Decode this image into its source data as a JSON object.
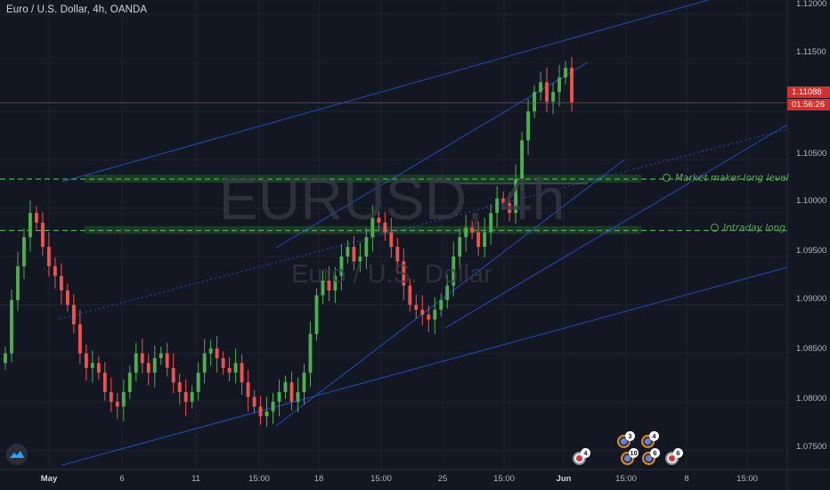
{
  "header": {
    "symbol_title": "Euro / U.S. Dollar, 4h, OANDA"
  },
  "watermark": {
    "symbol": "EURUSD, 4h",
    "description": "Euro / U.S. Dollar"
  },
  "levels": [
    {
      "label": "Market maker long level",
      "price": 1.103
    },
    {
      "label": "Intraday long",
      "price": 1.0977
    }
  ],
  "price_axis": {
    "ticks": [
      "1.12000",
      "1.11500",
      "1.11000",
      "1.10500",
      "1.10000",
      "1.09500",
      "1.09000",
      "1.08500",
      "1.08000",
      "1.07500"
    ],
    "current_price": "1.11088",
    "countdown": "01:56:26"
  },
  "time_axis": {
    "ticks": [
      {
        "label": "May",
        "bold": true
      },
      {
        "label": "6",
        "bold": false
      },
      {
        "label": "11",
        "bold": false
      },
      {
        "label": "15:00",
        "bold": false
      },
      {
        "label": "18",
        "bold": false
      },
      {
        "label": "15:00",
        "bold": false
      },
      {
        "label": "25",
        "bold": false
      },
      {
        "label": "15:00",
        "bold": false
      },
      {
        "label": "Jun",
        "bold": true
      },
      {
        "label": "15:00",
        "bold": false
      },
      {
        "label": "8",
        "bold": false
      },
      {
        "label": "15:00",
        "bold": false
      }
    ]
  },
  "events": [
    {
      "count": "4",
      "kind": "plain"
    },
    {
      "count": "3",
      "kind": "ring"
    },
    {
      "count": "4",
      "kind": "ring"
    },
    {
      "count": "10",
      "kind": "ring"
    },
    {
      "count": "6",
      "kind": "ring"
    },
    {
      "count": "6",
      "kind": "plain"
    }
  ],
  "colors": {
    "background": "#131722",
    "bull": "#26a69a",
    "bull_candle": "#4caf50",
    "bear_candle": "#ef5350",
    "level_zone": "#2e7d32",
    "trendline": "#2962ff",
    "current_price_line": "#d0302f"
  },
  "chart_data": {
    "type": "candlestick",
    "symbol": "EURUSD",
    "interval": "4h",
    "exchange": "OANDA",
    "ylim": [
      1.073,
      1.1215
    ],
    "x_range": [
      "May",
      "Jun"
    ],
    "close_series": [
      1.085,
      1.0905,
      1.094,
      1.097,
      1.0995,
      1.0985,
      1.096,
      1.094,
      1.093,
      1.0915,
      1.09,
      1.088,
      1.085,
      1.0835,
      1.084,
      1.083,
      1.081,
      1.08,
      1.0795,
      1.081,
      1.083,
      1.085,
      1.084,
      1.083,
      1.0845,
      1.085,
      1.0835,
      1.082,
      1.081,
      1.08,
      1.081,
      1.083,
      1.085,
      1.0855,
      1.0845,
      1.0835,
      1.083,
      1.084,
      1.082,
      1.0805,
      1.0795,
      1.0785,
      1.079,
      1.08,
      1.081,
      1.082,
      1.08,
      1.081,
      1.083,
      1.087,
      1.091,
      1.0925,
      1.0915,
      1.093,
      1.095,
      1.096,
      1.0945,
      1.095,
      1.097,
      1.099,
      1.0985,
      1.0975,
      1.096,
      1.0945,
      1.092,
      1.09,
      1.0895,
      1.089,
      1.0885,
      1.0895,
      1.0905,
      1.092,
      1.095,
      1.097,
      1.098,
      1.0975,
      1.096,
      1.0975,
      1.0995,
      1.101,
      1.1005,
      1.0995,
      1.103,
      1.107,
      1.11,
      1.112,
      1.113,
      1.111,
      1.112,
      1.1135,
      1.1145,
      1.1109
    ],
    "horizontal_levels": [
      {
        "name": "Market maker long level",
        "price": 1.103
      },
      {
        "name": "Intraday long",
        "price": 1.0977
      }
    ],
    "current_price": 1.11088,
    "grid": true
  }
}
